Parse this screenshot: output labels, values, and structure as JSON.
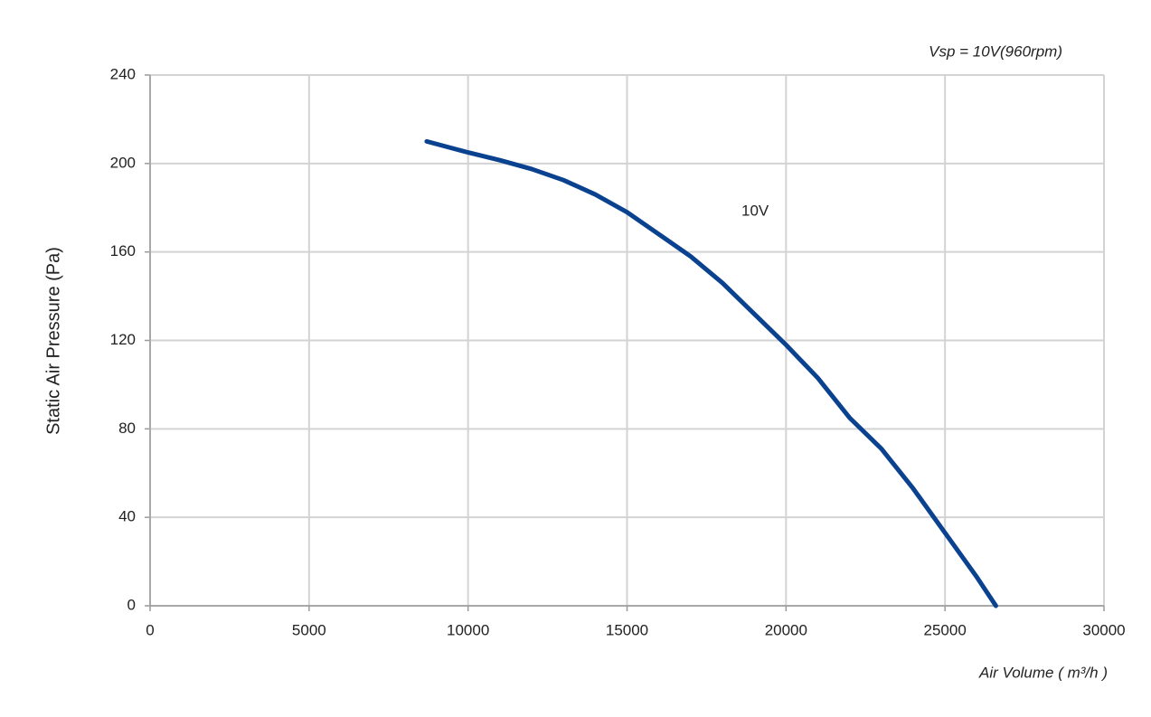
{
  "chart_data": {
    "type": "line",
    "title": "Vsp = 10V(960rpm)",
    "x_label": "Air Volume ( m³/h )",
    "y_label": "Static Air Pressure  (Pa)",
    "x": [
      8700,
      10000,
      11000,
      12000,
      13000,
      14000,
      15000,
      16000,
      17000,
      18000,
      19000,
      20000,
      21000,
      22000,
      23000,
      24000,
      25000,
      26000,
      26600
    ],
    "series": [
      {
        "name": "10V",
        "color": "#0a4290",
        "values": [
          210,
          205,
          201.5,
          197.5,
          192.5,
          186,
          178,
          168,
          158,
          146,
          132,
          118,
          103,
          85,
          71,
          53,
          33,
          13,
          0
        ]
      }
    ],
    "xlim": [
      0,
      30000
    ],
    "xticks": [
      0,
      5000,
      10000,
      15000,
      20000,
      25000,
      30000
    ],
    "ylim": [
      0,
      240
    ],
    "yticks": [
      0,
      40,
      80,
      120,
      160,
      200,
      240
    ],
    "grid": true
  }
}
